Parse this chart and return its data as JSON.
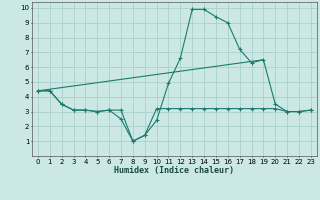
{
  "xlabel": "Humidex (Indice chaleur)",
  "bg_color": "#cce8e4",
  "line_color": "#1a7a6e",
  "grid_color": "#aacfcb",
  "xlim": [
    -0.5,
    23.5
  ],
  "ylim": [
    0,
    10.4
  ],
  "xticks": [
    0,
    1,
    2,
    3,
    4,
    5,
    6,
    7,
    8,
    9,
    10,
    11,
    12,
    13,
    14,
    15,
    16,
    17,
    18,
    19,
    20,
    21,
    22,
    23
  ],
  "yticks": [
    1,
    2,
    3,
    4,
    5,
    6,
    7,
    8,
    9,
    10
  ],
  "line1_x": [
    0,
    1,
    2,
    3,
    4,
    5,
    6,
    7,
    8,
    9,
    10,
    11,
    12,
    13,
    14,
    15,
    16,
    17,
    18,
    19,
    20,
    21,
    22,
    23
  ],
  "line1_y": [
    4.4,
    4.4,
    3.5,
    3.1,
    3.1,
    3.0,
    3.1,
    3.1,
    1.0,
    1.4,
    3.2,
    3.2,
    3.2,
    3.2,
    3.2,
    3.2,
    3.2,
    3.2,
    3.2,
    3.2,
    3.2,
    3.0,
    3.0,
    3.1
  ],
  "line2_x": [
    0,
    1,
    2,
    3,
    4,
    5,
    6,
    7,
    8,
    9,
    10,
    11,
    12,
    13,
    14,
    15,
    16,
    17,
    18,
    19,
    20,
    21,
    22,
    23
  ],
  "line2_y": [
    4.4,
    4.4,
    3.5,
    3.1,
    3.1,
    3.0,
    3.1,
    2.5,
    1.0,
    1.4,
    2.4,
    4.9,
    6.6,
    9.9,
    9.9,
    9.4,
    9.0,
    7.2,
    6.3,
    6.5,
    3.5,
    3.0,
    3.0,
    3.1
  ],
  "line3_x": [
    0,
    19
  ],
  "line3_y": [
    4.4,
    6.5
  ]
}
